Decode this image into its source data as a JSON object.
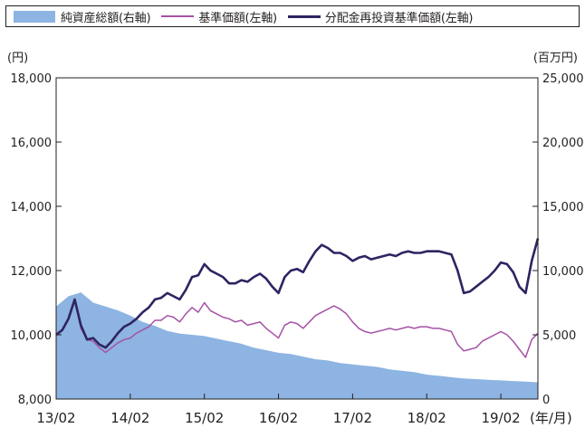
{
  "chart_data": {
    "type": "line",
    "title": "",
    "y_left_unit": "(円)",
    "y_right_unit": "(百万円)",
    "x_unit": "(年/月)",
    "ylim_left": [
      8000,
      18000
    ],
    "ylim_right": [
      0,
      25000
    ],
    "y_left_ticks": [
      "18,000",
      "16,000",
      "14,000",
      "12,000",
      "10,000",
      "8,000"
    ],
    "y_right_ticks": [
      "25,000",
      "20,000",
      "15,000",
      "10,000",
      "5,000",
      "0"
    ],
    "x_ticks": [
      "13/02",
      "14/02",
      "15/02",
      "16/02",
      "17/02",
      "18/02",
      "19/02"
    ],
    "xlim": [
      "2013-02",
      "2019-08"
    ],
    "grid": false,
    "legend_position": "top",
    "colors": {
      "net_assets": "#8db4e2",
      "nav": "#a552a5",
      "reinvested_nav": "#2e2462"
    },
    "series": [
      {
        "name": "純資産総額(右軸)",
        "axis": "right",
        "style": "area",
        "x": [
          "2013-02",
          "2013-04",
          "2013-06",
          "2013-08",
          "2013-10",
          "2013-12",
          "2014-02",
          "2014-04",
          "2014-06",
          "2014-08",
          "2014-10",
          "2014-12",
          "2015-02",
          "2015-04",
          "2015-06",
          "2015-08",
          "2015-10",
          "2015-12",
          "2016-02",
          "2016-04",
          "2016-06",
          "2016-08",
          "2016-10",
          "2016-12",
          "2017-02",
          "2017-04",
          "2017-06",
          "2017-08",
          "2017-10",
          "2017-12",
          "2018-02",
          "2018-04",
          "2018-06",
          "2018-08",
          "2018-10",
          "2018-12",
          "2019-02",
          "2019-04",
          "2019-06",
          "2019-08"
        ],
        "values": [
          7200,
          8000,
          8300,
          7500,
          7200,
          6900,
          6500,
          6000,
          5700,
          5300,
          5100,
          5000,
          4900,
          4700,
          4500,
          4300,
          4000,
          3800,
          3600,
          3500,
          3300,
          3100,
          3000,
          2800,
          2700,
          2600,
          2500,
          2300,
          2200,
          2100,
          1900,
          1800,
          1700,
          1600,
          1550,
          1500,
          1450,
          1400,
          1350,
          1300
        ]
      },
      {
        "name": "基準価額(左軸)",
        "axis": "left",
        "style": "line",
        "x": [
          "2013-02",
          "2013-03",
          "2013-04",
          "2013-05",
          "2013-06",
          "2013-07",
          "2013-08",
          "2013-09",
          "2013-10",
          "2013-11",
          "2013-12",
          "2014-01",
          "2014-02",
          "2014-03",
          "2014-04",
          "2014-05",
          "2014-06",
          "2014-07",
          "2014-08",
          "2014-09",
          "2014-10",
          "2014-11",
          "2014-12",
          "2015-01",
          "2015-02",
          "2015-03",
          "2015-04",
          "2015-05",
          "2015-06",
          "2015-07",
          "2015-08",
          "2015-09",
          "2015-10",
          "2015-11",
          "2015-12",
          "2016-01",
          "2016-02",
          "2016-03",
          "2016-04",
          "2016-05",
          "2016-06",
          "2016-07",
          "2016-08",
          "2016-09",
          "2016-10",
          "2016-11",
          "2016-12",
          "2017-01",
          "2017-02",
          "2017-03",
          "2017-04",
          "2017-05",
          "2017-06",
          "2017-07",
          "2017-08",
          "2017-09",
          "2017-10",
          "2017-11",
          "2017-12",
          "2018-01",
          "2018-02",
          "2018-03",
          "2018-04",
          "2018-05",
          "2018-06",
          "2018-07",
          "2018-08",
          "2018-09",
          "2018-10",
          "2018-11",
          "2018-12",
          "2019-01",
          "2019-02",
          "2019-03",
          "2019-04",
          "2019-05",
          "2019-06",
          "2019-07",
          "2019-08"
        ],
        "values": [
          10000,
          10150,
          10500,
          11100,
          10200,
          9850,
          9800,
          9600,
          9450,
          9600,
          9750,
          9850,
          9900,
          10050,
          10150,
          10250,
          10450,
          10450,
          10600,
          10550,
          10400,
          10650,
          10850,
          10700,
          11000,
          10750,
          10650,
          10550,
          10500,
          10400,
          10450,
          10300,
          10350,
          10400,
          10200,
          10050,
          9900,
          10300,
          10400,
          10350,
          10200,
          10400,
          10600,
          10700,
          10800,
          10900,
          10800,
          10650,
          10400,
          10200,
          10100,
          10050,
          10100,
          10150,
          10200,
          10150,
          10200,
          10250,
          10200,
          10250,
          10250,
          10200,
          10200,
          10150,
          10100,
          9700,
          9500,
          9550,
          9600,
          9800,
          9900,
          10000,
          10100,
          10000,
          9800,
          9550,
          9300,
          9850,
          10050
        ]
      },
      {
        "name": "分配金再投資基準価額(左軸)",
        "axis": "left",
        "style": "line",
        "x": [
          "2013-02",
          "2013-03",
          "2013-04",
          "2013-05",
          "2013-06",
          "2013-07",
          "2013-08",
          "2013-09",
          "2013-10",
          "2013-11",
          "2013-12",
          "2014-01",
          "2014-02",
          "2014-03",
          "2014-04",
          "2014-05",
          "2014-06",
          "2014-07",
          "2014-08",
          "2014-09",
          "2014-10",
          "2014-11",
          "2014-12",
          "2015-01",
          "2015-02",
          "2015-03",
          "2015-04",
          "2015-05",
          "2015-06",
          "2015-07",
          "2015-08",
          "2015-09",
          "2015-10",
          "2015-11",
          "2015-12",
          "2016-01",
          "2016-02",
          "2016-03",
          "2016-04",
          "2016-05",
          "2016-06",
          "2016-07",
          "2016-08",
          "2016-09",
          "2016-10",
          "2016-11",
          "2016-12",
          "2017-01",
          "2017-02",
          "2017-03",
          "2017-04",
          "2017-05",
          "2017-06",
          "2017-07",
          "2017-08",
          "2017-09",
          "2017-10",
          "2017-11",
          "2017-12",
          "2018-01",
          "2018-02",
          "2018-03",
          "2018-04",
          "2018-05",
          "2018-06",
          "2018-07",
          "2018-08",
          "2018-09",
          "2018-10",
          "2018-11",
          "2018-12",
          "2019-01",
          "2019-02",
          "2019-03",
          "2019-04",
          "2019-05",
          "2019-06",
          "2019-07",
          "2019-08"
        ],
        "values": [
          10000,
          10150,
          10500,
          11100,
          10300,
          9850,
          9900,
          9700,
          9600,
          9800,
          10050,
          10250,
          10350,
          10500,
          10700,
          10850,
          11100,
          11150,
          11300,
          11200,
          11100,
          11400,
          11800,
          11850,
          12200,
          12000,
          11900,
          11800,
          11600,
          11600,
          11700,
          11650,
          11800,
          11900,
          11750,
          11500,
          11300,
          11800,
          12000,
          12050,
          11950,
          12300,
          12600,
          12800,
          12700,
          12550,
          12550,
          12450,
          12300,
          12400,
          12450,
          12350,
          12400,
          12450,
          12500,
          12450,
          12550,
          12600,
          12550,
          12550,
          12600,
          12600,
          12600,
          12550,
          12500,
          12000,
          11300,
          11350,
          11500,
          11650,
          11800,
          12000,
          12250,
          12200,
          11950,
          11500,
          11300,
          12300,
          13000
        ]
      }
    ]
  }
}
